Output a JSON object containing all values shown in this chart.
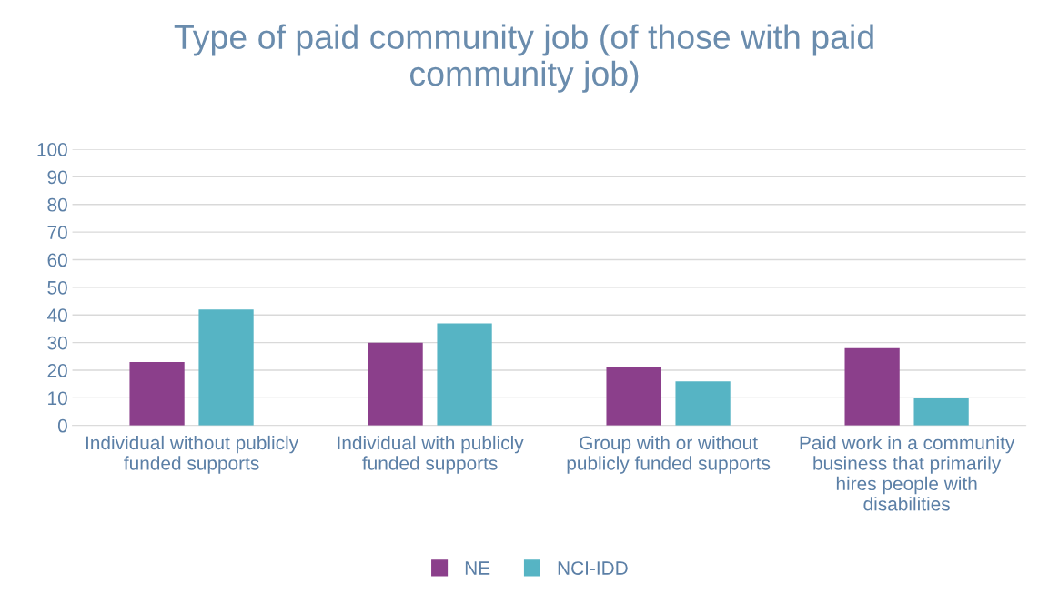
{
  "chart_data": {
    "type": "bar",
    "title": "Type of paid community job (of those with paid community job)",
    "categories": [
      "Individual without publicly funded supports",
      "Individual with publicly funded supports",
      "Group with or without publicly funded supports",
      "Paid work in a community business that primarily hires people with disabilities"
    ],
    "series": [
      {
        "name": "NE",
        "color": "#8b3f8b",
        "values": [
          23,
          30,
          21,
          28
        ]
      },
      {
        "name": "NCI-IDD",
        "color": "#56b4c4",
        "values": [
          42,
          37,
          16,
          10
        ]
      }
    ],
    "ylim": [
      0,
      100
    ],
    "yticks": [
      0,
      10,
      20,
      30,
      40,
      50,
      60,
      70,
      80,
      90,
      100
    ],
    "grid": "y",
    "legend": "bottom"
  }
}
